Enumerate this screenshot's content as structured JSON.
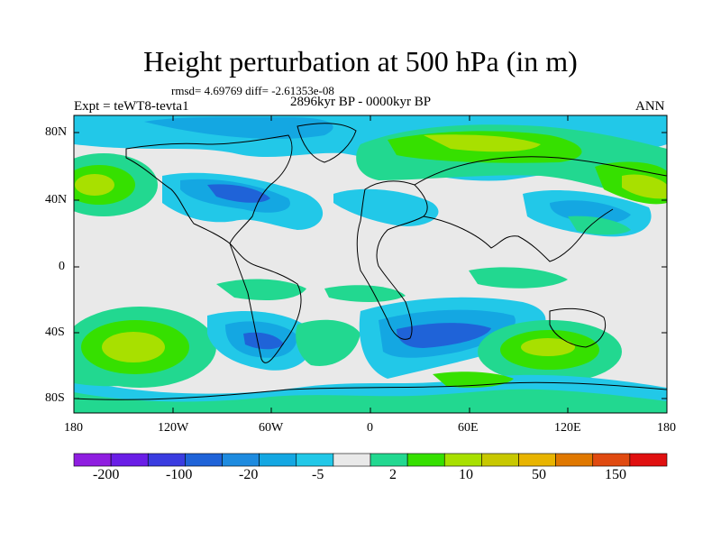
{
  "title": "Height perturbation at 500 hPa (in m)",
  "stats_line": "rmsd= 4.69769 diff= -2.61353e-08",
  "experiment": "Expt = teWT8-tevta1",
  "period": "2896kyr BP - 0000kyr BP",
  "season": "ANN",
  "lat_labels": [
    "80N",
    "40N",
    "0",
    "40S",
    "80S"
  ],
  "lon_labels": [
    "180",
    "120W",
    "60W",
    "0",
    "60E",
    "120E",
    "180"
  ],
  "colorbar": {
    "labels": [
      "-200",
      "-100",
      "-20",
      "-5",
      "2",
      "10",
      "50",
      "150"
    ],
    "colors": [
      "#8f1ee0",
      "#6a1ee6",
      "#3a3ce0",
      "#1f63d8",
      "#1e8bdf",
      "#14a7e2",
      "#22c8e8",
      "#e9e9e9",
      "#22d890",
      "#36e000",
      "#a8e000",
      "#c8c800",
      "#e8b400",
      "#e07800",
      "#e04a10",
      "#e01010"
    ]
  },
  "colors": {
    "land_bg": "#e9e9e9",
    "neg_weak": "#22c8e8",
    "neg_mid": "#14a7e2",
    "neg_strong": "#1f63d8",
    "pos_weak": "#22d890",
    "pos_mid": "#36e000",
    "pos_strong": "#a8e000",
    "pos_peak": "#e8b400"
  }
}
